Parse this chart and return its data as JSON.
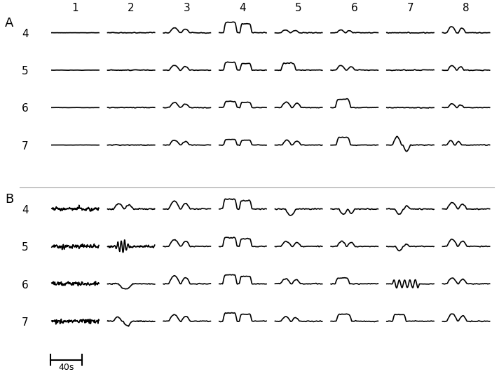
{
  "title_A": "A",
  "title_B": "B",
  "col_labels": [
    "1",
    "2",
    "3",
    "4",
    "5",
    "6",
    "7",
    "8"
  ],
  "row_labels": [
    "4",
    "5",
    "6",
    "7"
  ],
  "scale_bar_label": "40s",
  "background_color": "#ffffff",
  "line_color": "#000000",
  "line_width": 1.2,
  "figsize": [
    7.12,
    5.4
  ],
  "dpi": 100
}
